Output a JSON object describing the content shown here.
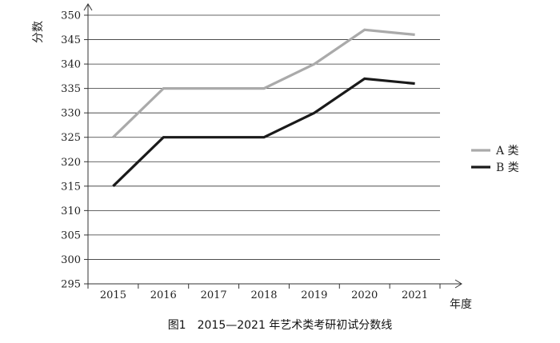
{
  "chart_data": {
    "type": "line",
    "categories": [
      "2015",
      "2016",
      "2017",
      "2018",
      "2019",
      "2020",
      "2021"
    ],
    "series": [
      {
        "name": "A 类",
        "values": [
          325,
          335,
          335,
          335,
          340,
          347,
          346
        ],
        "color": "#aaaaaa"
      },
      {
        "name": "B 类",
        "values": [
          315,
          325,
          325,
          325,
          330,
          337,
          336
        ],
        "color": "#1a1a1a"
      }
    ],
    "ylim": [
      295,
      350
    ],
    "yticks": [
      295,
      300,
      305,
      310,
      315,
      320,
      325,
      330,
      335,
      340,
      345,
      350
    ],
    "ylabel": "分数",
    "xlabel": "年度",
    "grid": true,
    "legend": "right",
    "caption": "图1　2015—2021 年艺术类考研初试分数线"
  }
}
